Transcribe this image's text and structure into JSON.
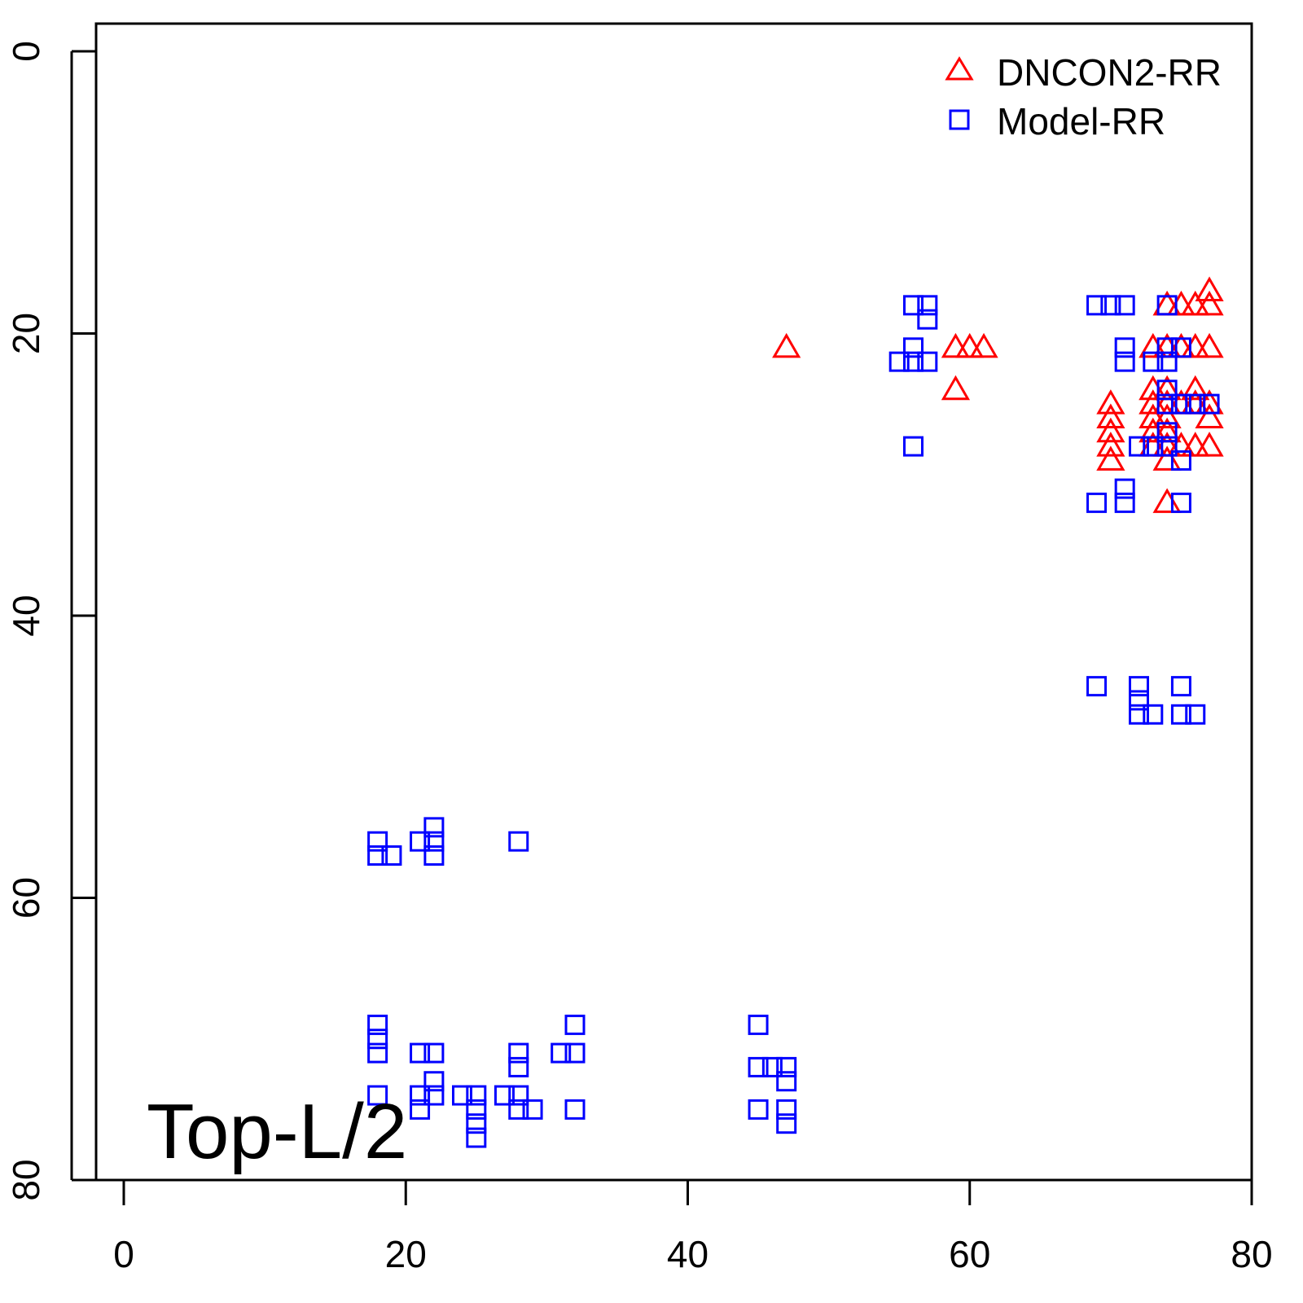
{
  "chart_data": {
    "type": "scatter",
    "title": "",
    "annotation": "Top-L/2",
    "xlabel": "",
    "ylabel": "",
    "xlim": [
      0,
      80
    ],
    "ylim": [
      80,
      0
    ],
    "x_ticks": [
      "0",
      "20",
      "40",
      "60",
      "80"
    ],
    "y_ticks": [
      "0",
      "20",
      "40",
      "60",
      "80"
    ],
    "legend_placement": "top-right",
    "colors": {
      "triangle": "#ff0000",
      "square": "#0000ff"
    },
    "series": [
      {
        "name": "DNCON2-RR",
        "marker": "triangle",
        "points": [
          [
            47,
            21
          ],
          [
            59,
            21
          ],
          [
            59,
            24
          ],
          [
            60,
            21
          ],
          [
            61,
            21
          ],
          [
            70,
            25
          ],
          [
            70,
            26
          ],
          [
            70,
            27
          ],
          [
            70,
            28
          ],
          [
            70,
            29
          ],
          [
            73,
            21
          ],
          [
            73,
            24
          ],
          [
            73,
            25
          ],
          [
            73,
            26
          ],
          [
            73,
            27
          ],
          [
            73,
            28
          ],
          [
            74,
            18
          ],
          [
            74,
            21
          ],
          [
            74,
            24
          ],
          [
            74,
            25
          ],
          [
            74,
            26
          ],
          [
            74,
            27
          ],
          [
            74,
            28
          ],
          [
            74,
            29
          ],
          [
            74,
            32
          ],
          [
            75,
            18
          ],
          [
            75,
            21
          ],
          [
            75,
            25
          ],
          [
            75,
            28
          ],
          [
            76,
            18
          ],
          [
            76,
            21
          ],
          [
            76,
            24
          ],
          [
            76,
            25
          ],
          [
            76,
            28
          ],
          [
            77,
            17
          ],
          [
            77,
            18
          ],
          [
            77,
            21
          ],
          [
            77,
            25
          ],
          [
            77,
            26
          ],
          [
            77,
            28
          ]
        ]
      },
      {
        "name": "Model-RR",
        "marker": "square",
        "points": [
          [
            18,
            56
          ],
          [
            18,
            57
          ],
          [
            19,
            57
          ],
          [
            21,
            56
          ],
          [
            22,
            55
          ],
          [
            22,
            56
          ],
          [
            22,
            57
          ],
          [
            28,
            56
          ],
          [
            18,
            69
          ],
          [
            18,
            70
          ],
          [
            18,
            71
          ],
          [
            18,
            74
          ],
          [
            21,
            71
          ],
          [
            21,
            74
          ],
          [
            21,
            75
          ],
          [
            22,
            71
          ],
          [
            22,
            73
          ],
          [
            22,
            74
          ],
          [
            24,
            74
          ],
          [
            25,
            74
          ],
          [
            25,
            75
          ],
          [
            25,
            76
          ],
          [
            25,
            77
          ],
          [
            27,
            74
          ],
          [
            28,
            71
          ],
          [
            28,
            72
          ],
          [
            28,
            74
          ],
          [
            28,
            75
          ],
          [
            29,
            75
          ],
          [
            31,
            71
          ],
          [
            32,
            69
          ],
          [
            32,
            71
          ],
          [
            32,
            75
          ],
          [
            45,
            69
          ],
          [
            45,
            72
          ],
          [
            45,
            75
          ],
          [
            46,
            72
          ],
          [
            47,
            72
          ],
          [
            47,
            73
          ],
          [
            47,
            75
          ],
          [
            47,
            76
          ],
          [
            55,
            22
          ],
          [
            56,
            18
          ],
          [
            56,
            21
          ],
          [
            56,
            22
          ],
          [
            56,
            28
          ],
          [
            57,
            18
          ],
          [
            57,
            19
          ],
          [
            57,
            22
          ],
          [
            69,
            18
          ],
          [
            69,
            32
          ],
          [
            69,
            45
          ],
          [
            70,
            18
          ],
          [
            71,
            18
          ],
          [
            71,
            21
          ],
          [
            71,
            22
          ],
          [
            71,
            31
          ],
          [
            71,
            32
          ],
          [
            72,
            28
          ],
          [
            72,
            45
          ],
          [
            72,
            46
          ],
          [
            72,
            47
          ],
          [
            73,
            22
          ],
          [
            73,
            28
          ],
          [
            73,
            47
          ],
          [
            74,
            18
          ],
          [
            74,
            21
          ],
          [
            74,
            22
          ],
          [
            74,
            24
          ],
          [
            74,
            25
          ],
          [
            74,
            27
          ],
          [
            74,
            28
          ],
          [
            75,
            21
          ],
          [
            75,
            25
          ],
          [
            75,
            29
          ],
          [
            75,
            32
          ],
          [
            75,
            45
          ],
          [
            75,
            47
          ],
          [
            76,
            25
          ],
          [
            76,
            47
          ],
          [
            77,
            25
          ]
        ]
      }
    ]
  }
}
